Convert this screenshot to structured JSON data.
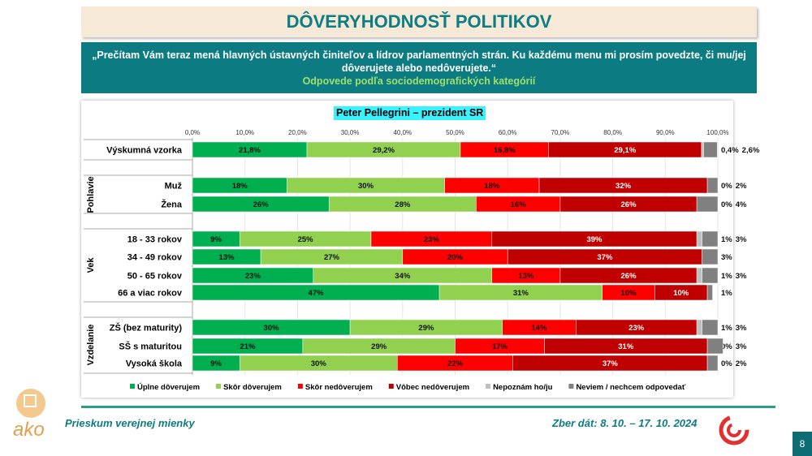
{
  "title": "DÔVERYHODNOSŤ POLITIKOV",
  "question": "„Prečítam Vám teraz mená hlavných ústavných činiteľov a lídrov parlamentných strán. Ku každému menu mi prosím povedzte, či mu/jej dôverujete alebo nedôverujete.“",
  "question_sub": "Odpovede podľa sociodemografických kategórií",
  "footer": {
    "left": "Prieskum verejnej mienky",
    "right": "Zber dát: 8. 10. – 17. 10. 2024",
    "page": "8",
    "logo": "ako"
  },
  "chart_data": {
    "type": "bar",
    "orientation": "horizontal",
    "stacked": "percent",
    "title": "Peter Pellegrini – prezident SR",
    "xlim": [
      0,
      100
    ],
    "xticks": [
      "0,0%",
      "10,0%",
      "20,0%",
      "30,0%",
      "40,0%",
      "50,0%",
      "60,0%",
      "70,0%",
      "80,0%",
      "90,0%",
      "100,0%"
    ],
    "grid": true,
    "legend": "bottom",
    "groups": [
      {
        "name": "",
        "rows": [
          0
        ]
      },
      {
        "name": "Pohlavie",
        "rows": [
          1,
          2
        ]
      },
      {
        "name": "Vek",
        "rows": [
          3,
          4,
          5,
          6
        ]
      },
      {
        "name": "Vzdelanie",
        "rows": [
          7,
          8,
          9
        ]
      }
    ],
    "categories": [
      "Výskumná vzorka",
      "Muž",
      "Žena",
      "18 - 33 rokov",
      "34 - 49 rokov",
      "50 - 65 rokov",
      "66 a viac rokov",
      "ZŠ (bez maturity)",
      "SŠ s maturitou",
      "Vysoká škola"
    ],
    "series": [
      {
        "name": "Úplne dôverujem",
        "color": "#00b050",
        "values": [
          21.8,
          18,
          26,
          9,
          13,
          23,
          47,
          30,
          21,
          9
        ],
        "labels": [
          "21,8%",
          "18%",
          "26%",
          "9%",
          "13%",
          "23%",
          "47%",
          "30%",
          "21%",
          "9%"
        ]
      },
      {
        "name": "Skôr dôverujem",
        "color": "#92d050",
        "values": [
          29.2,
          30,
          28,
          25,
          27,
          34,
          31,
          29,
          29,
          30
        ],
        "labels": [
          "29,2%",
          "30%",
          "28%",
          "25%",
          "27%",
          "34%",
          "31%",
          "29%",
          "29%",
          "30%"
        ]
      },
      {
        "name": "Skôr nedôverujem",
        "color": "#ff0000",
        "values": [
          16.8,
          18,
          16,
          23,
          20,
          13,
          10,
          14,
          17,
          22
        ],
        "labels": [
          "16,8%",
          "18%",
          "16%",
          "23%",
          "20%",
          "13%",
          "10%",
          "14%",
          "17%",
          "22%"
        ]
      },
      {
        "name": "Vôbec nedôverujem",
        "color": "#c00000",
        "values": [
          29.1,
          32,
          26,
          39,
          37,
          26,
          10,
          23,
          31,
          37
        ],
        "labels": [
          "29,1%",
          "32%",
          "26%",
          "39%",
          "37%",
          "26%",
          "10%",
          "23%",
          "31%",
          "37%"
        ]
      },
      {
        "name": "Nepoznám ho/ju",
        "color": "#bfbfbf",
        "values": [
          0.4,
          0,
          0,
          1,
          0,
          1,
          0,
          1,
          0,
          0
        ],
        "labels": [
          "0,4%",
          "0%",
          "0%",
          "1%",
          "",
          "1%",
          "",
          "1%",
          "0%",
          "0%"
        ]
      },
      {
        "name": "Neviem / nechcem odpovedať",
        "color": "#808080",
        "values": [
          2.6,
          2,
          4,
          3,
          3,
          3,
          1,
          3,
          3,
          2
        ],
        "labels": [
          "2,6%",
          "2%",
          "4%",
          "3%",
          "3%",
          "3%",
          "1%",
          "3%",
          "3%",
          "2%"
        ]
      }
    ]
  }
}
